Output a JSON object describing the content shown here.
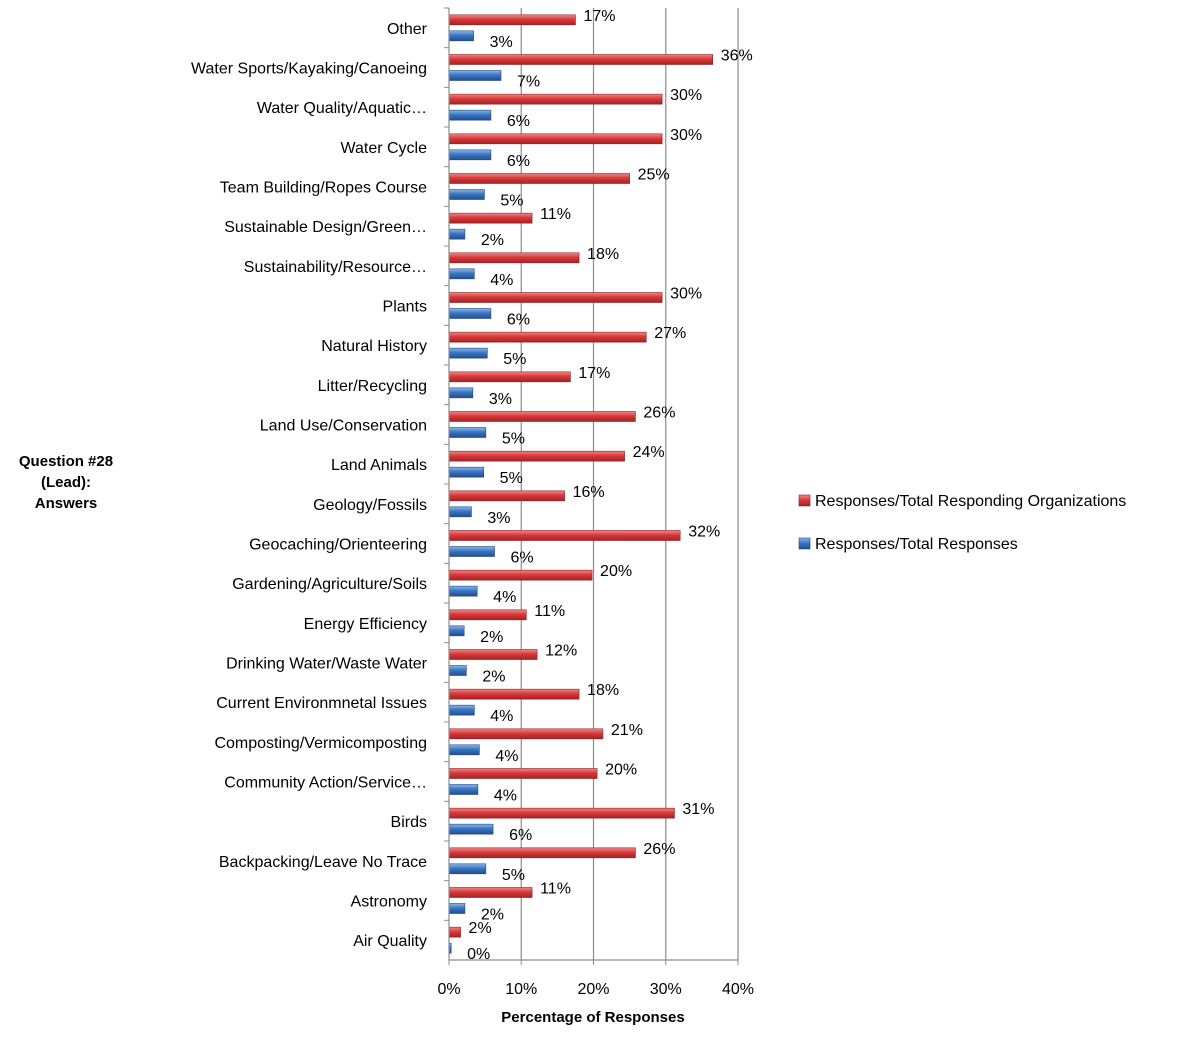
{
  "chart_data": {
    "type": "bar",
    "orientation": "horizontal",
    "title": "",
    "ylabel": "Question #28 (Lead): Answers",
    "xlabel": "Percentage of Responses",
    "xlim": [
      0,
      40
    ],
    "x_ticks": [
      "0%",
      "10%",
      "20%",
      "30%",
      "40%"
    ],
    "grid": "vertical major gridlines",
    "legend_position": "right",
    "categories": [
      "Other",
      "Water Sports/Kayaking/Canoeing",
      "Water Quality/Aquatic…",
      "Water Cycle",
      "Team Building/Ropes Course",
      "Sustainable Design/Green…",
      "Sustainability/Resource…",
      "Plants",
      "Natural History",
      "Litter/Recycling",
      "Land Use/Conservation",
      "Land Animals",
      "Geology/Fossils",
      "Geocaching/Orienteering",
      "Gardening/Agriculture/Soils",
      "Energy Efficiency",
      "Drinking Water/Waste Water",
      "Current Environmnetal Issues",
      "Composting/Vermicomposting",
      "Community Action/Service…",
      "Birds",
      "Backpacking/Leave No Trace",
      "Astronomy",
      "Air Quality"
    ],
    "series": [
      {
        "name": "Responses/Total Responding Organizations",
        "color": "#d9393a",
        "values": [
          17.5,
          36.5,
          29.5,
          29.5,
          25,
          11.5,
          18,
          29.5,
          27.3,
          16.8,
          25.8,
          24.3,
          16,
          32,
          19.8,
          10.7,
          12.2,
          18,
          21.3,
          20.5,
          31.2,
          25.8,
          11.5,
          1.6
        ],
        "labels": [
          "17%",
          "36%",
          "30%",
          "30%",
          "25%",
          "11%",
          "18%",
          "30%",
          "27%",
          "17%",
          "26%",
          "24%",
          "16%",
          "32%",
          "20%",
          "11%",
          "12%",
          "18%",
          "21%",
          "20%",
          "31%",
          "26%",
          "11%",
          "2%"
        ]
      },
      {
        "name": "Responses/Total Responses",
        "color": "#3a76c4",
        "values": [
          3.4,
          7.2,
          5.8,
          5.8,
          4.9,
          2.2,
          3.5,
          5.8,
          5.3,
          3.3,
          5.1,
          4.8,
          3.1,
          6.3,
          3.9,
          2.1,
          2.4,
          3.5,
          4.2,
          4,
          6.1,
          5.1,
          2.2,
          0.3
        ],
        "labels": [
          "3%",
          "7%",
          "6%",
          "6%",
          "5%",
          "2%",
          "4%",
          "6%",
          "5%",
          "3%",
          "5%",
          "5%",
          "3%",
          "6%",
          "4%",
          "2%",
          "2%",
          "4%",
          "4%",
          "4%",
          "6%",
          "5%",
          "2%",
          "0%"
        ]
      }
    ]
  }
}
